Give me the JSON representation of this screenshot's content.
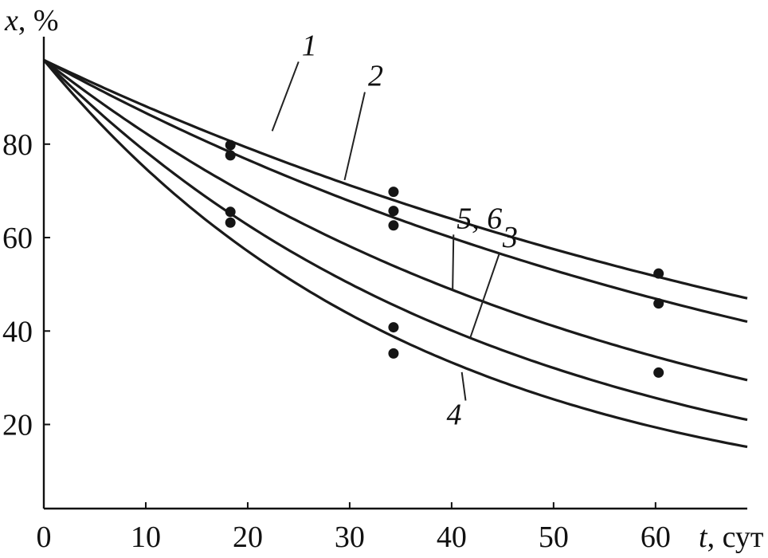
{
  "chart_data": {
    "type": "line",
    "xlabel_var": "t",
    "xlabel_unit": ", сут",
    "ylabel_var": "x",
    "ylabel_unit": ", %",
    "xlim": [
      0,
      69
    ],
    "ylim": [
      2,
      103
    ],
    "x_ticks": [
      0,
      10,
      20,
      30,
      40,
      50,
      60
    ],
    "y_ticks": [
      20,
      40,
      60,
      80
    ],
    "grid": false,
    "series": [
      {
        "name": "1",
        "x": [
          0,
          10,
          20,
          30,
          40,
          50,
          60,
          69
        ],
        "y": [
          98,
          88.4,
          79.8,
          72.1,
          65.1,
          58.8,
          53.1,
          47
        ]
      },
      {
        "name": "2",
        "x": [
          0,
          10,
          20,
          30,
          40,
          50,
          60,
          69
        ],
        "y": [
          98,
          86.6,
          76.6,
          67.7,
          59.8,
          52.9,
          46.7,
          42
        ]
      },
      {
        "name": "5, 6",
        "x": [
          0,
          10,
          20,
          30,
          40,
          50,
          60,
          69
        ],
        "y": [
          98,
          82.3,
          69.1,
          58,
          48.7,
          40.9,
          34.3,
          29.5
        ]
      },
      {
        "name": "3",
        "x": [
          0,
          10,
          20,
          30,
          40,
          50,
          60,
          69
        ],
        "y": [
          98,
          78.1,
          62.3,
          49.6,
          39.5,
          31.5,
          25.1,
          21
        ]
      },
      {
        "name": "4",
        "x": [
          0,
          10,
          20,
          30,
          40,
          50,
          60,
          69
        ],
        "y": [
          98,
          74.3,
          56.3,
          42.7,
          32.3,
          24.5,
          18.6,
          15.2
        ]
      }
    ],
    "points": [
      {
        "x": 18.3,
        "y": 79.8
      },
      {
        "x": 18.3,
        "y": 77.6
      },
      {
        "x": 18.3,
        "y": 65.5
      },
      {
        "x": 18.3,
        "y": 63.2
      },
      {
        "x": 34.3,
        "y": 69.8
      },
      {
        "x": 34.3,
        "y": 65.7
      },
      {
        "x": 34.3,
        "y": 62.6
      },
      {
        "x": 34.3,
        "y": 40.8
      },
      {
        "x": 34.3,
        "y": 35.2
      },
      {
        "x": 60.3,
        "y": 52.3
      },
      {
        "x": 60.3,
        "y": 45.9
      },
      {
        "x": 60.3,
        "y": 31.1
      }
    ],
    "curve_labels": [
      {
        "text": "1",
        "label_at": [
          25.3,
          99.0
        ],
        "leader_to": [
          22.4,
          82.8
        ]
      },
      {
        "text": "2",
        "label_at": [
          31.8,
          92.5
        ],
        "leader_to": [
          29.5,
          72.3
        ]
      },
      {
        "text": "5, 6",
        "label_at": [
          40.5,
          62.0
        ],
        "leader_to": [
          40.1,
          48.9
        ]
      },
      {
        "text": "3",
        "label_at": [
          45.0,
          58.0
        ],
        "leader_to": [
          41.8,
          38.4
        ]
      },
      {
        "text": "4",
        "label_at": [
          39.5,
          20.0
        ],
        "leader_to": [
          41.0,
          31.2
        ]
      }
    ]
  }
}
